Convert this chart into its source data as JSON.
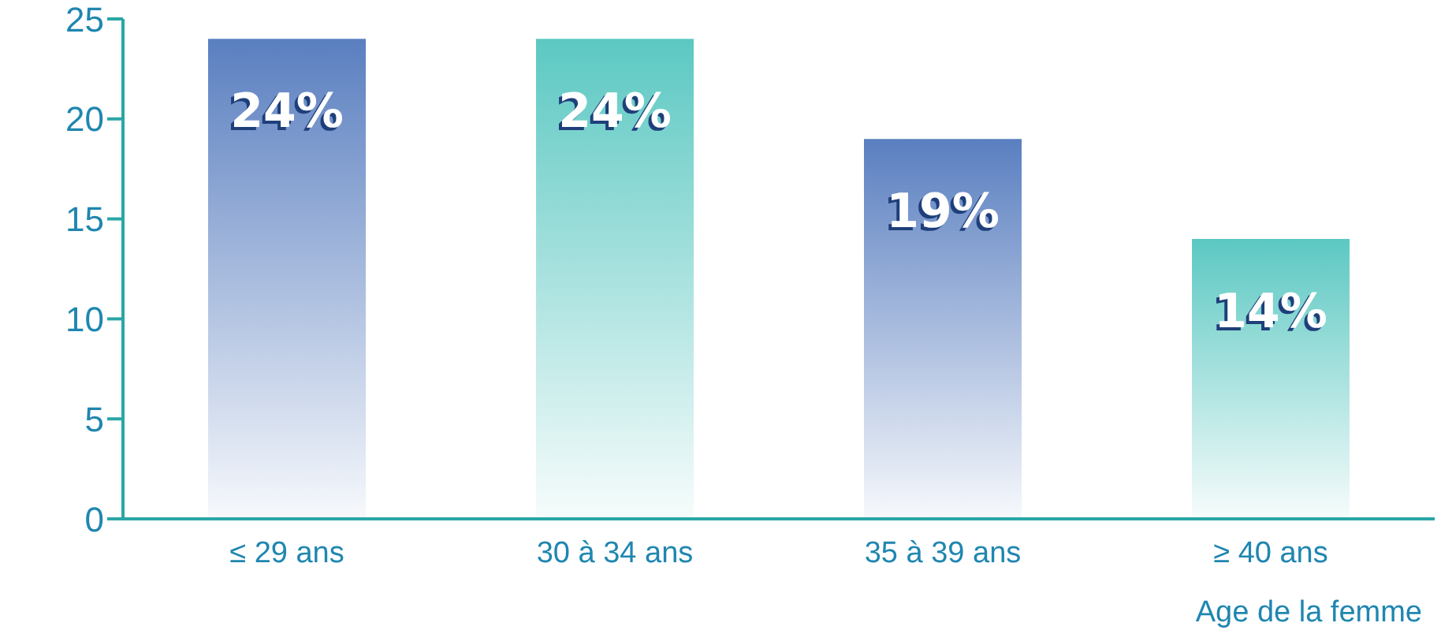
{
  "chart_data": {
    "type": "bar",
    "xlabel": "Age de la femme",
    "categories": [
      "≤ 29 ans",
      "30 à 34 ans",
      "35 à 39 ans",
      "≥ 40 ans"
    ],
    "values": [
      24,
      24,
      19,
      14
    ],
    "colors": [
      "#5a7fc0",
      "#5cc8c2",
      "#5a7fc0",
      "#5cc8c2"
    ],
    "value_labels": [
      "24%",
      "24%",
      "19%",
      "14%"
    ],
    "ylim": [
      0,
      25
    ],
    "yticks": [
      0,
      5,
      10,
      15,
      20,
      25
    ],
    "grid": false,
    "legend": false
  }
}
